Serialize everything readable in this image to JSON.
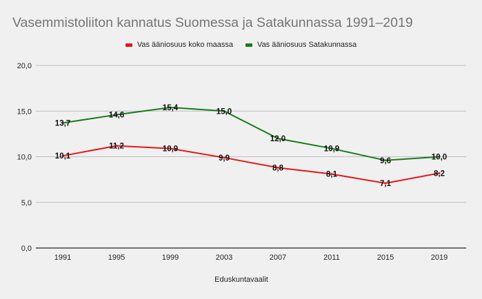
{
  "chart_data": {
    "type": "line",
    "title": "Vasemmistoliiton kannatus Suomessa ja Satakunnassa 1991–2019",
    "xlabel": "Eduskuntavaalit",
    "ylabel": "",
    "ylim": [
      0,
      20
    ],
    "yticks": [
      0,
      5,
      10,
      15,
      20
    ],
    "ytick_labels": [
      "0,0",
      "5,0",
      "10,0",
      "15,0",
      "20,0"
    ],
    "grid": true,
    "legend_position": "top",
    "categories": [
      "1991",
      "1995",
      "1999",
      "2003",
      "2007",
      "2011",
      "2015",
      "2019"
    ],
    "series": [
      {
        "name": "Vas ääniosuus koko maassa",
        "color": "#e8141a",
        "values": [
          10.1,
          11.2,
          10.9,
          9.9,
          8.8,
          8.1,
          7.1,
          8.2
        ],
        "labels": [
          "10,1",
          "11,2",
          "10,9",
          "9,9",
          "8,8",
          "8,1",
          "7,1",
          "8,2"
        ]
      },
      {
        "name": "Vas ääniosuus Satakunnassa",
        "color": "#1a7a1a",
        "values": [
          13.7,
          14.6,
          15.4,
          15.0,
          12.0,
          10.9,
          9.6,
          10.0
        ],
        "labels": [
          "13,7",
          "14,6",
          "15,4",
          "15,0",
          "12,0",
          "10,9",
          "9,6",
          "10,0"
        ]
      }
    ]
  }
}
